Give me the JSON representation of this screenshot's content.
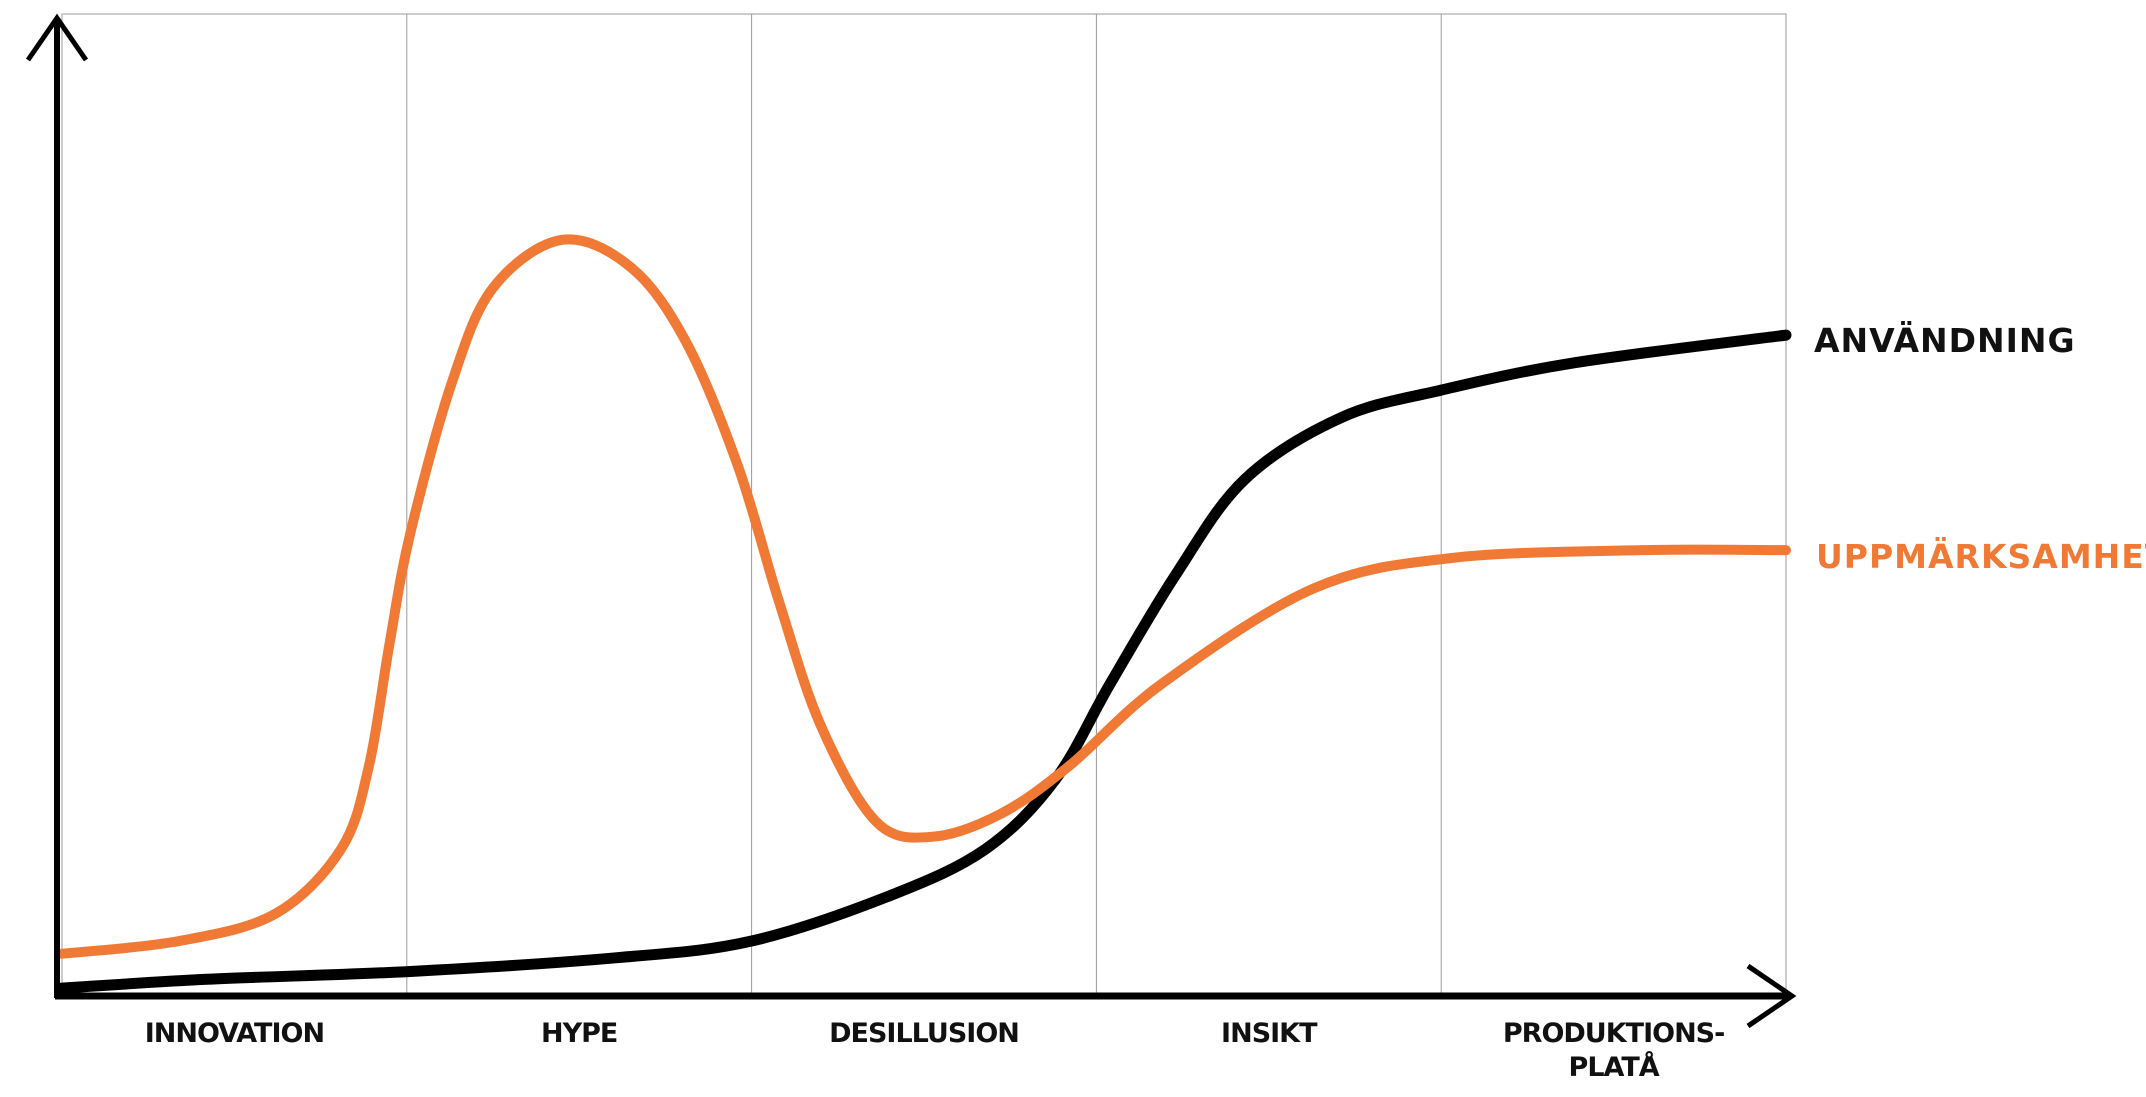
{
  "chart_data": {
    "type": "line",
    "title": "",
    "xlabel": "",
    "ylabel": "",
    "categories": [
      "INNOVATION",
      "HYPE",
      "DESILLUSION",
      "INSIKT",
      [
        "PRODUKTIONS-",
        "PLATÅ"
      ]
    ],
    "xlim": [
      0,
      5
    ],
    "ylim": [
      0,
      1
    ],
    "grid": "vertical lines between phases",
    "legend": "labels at right end of lines",
    "series": [
      {
        "name": "ANVÄNDNING",
        "color": "#000000",
        "x": [
          0,
          0.42,
          1.01,
          1.61,
          2.0,
          2.4,
          2.68,
          2.88,
          3.04,
          3.23,
          3.43,
          3.71,
          4.0,
          4.39,
          5
        ],
        "y": [
          0.008,
          0.017,
          0.025,
          0.039,
          0.056,
          0.102,
          0.15,
          0.22,
          0.318,
          0.429,
          0.526,
          0.589,
          0.617,
          0.645,
          0.673
        ]
      },
      {
        "name": "UPPMÄRKSAMHET",
        "color": "#f07a35",
        "x": [
          0,
          0.34,
          0.62,
          0.81,
          0.89,
          0.95,
          1.01,
          1.13,
          1.25,
          1.45,
          1.65,
          1.81,
          1.96,
          2.08,
          2.2,
          2.36,
          2.52,
          2.72,
          2.92,
          3.19,
          3.63,
          4.03,
          4.58,
          5
        ],
        "y": [
          0.043,
          0.056,
          0.084,
          0.15,
          0.234,
          0.359,
          0.471,
          0.624,
          0.721,
          0.77,
          0.742,
          0.666,
          0.54,
          0.401,
          0.276,
          0.178,
          0.162,
          0.185,
          0.234,
          0.318,
          0.415,
          0.446,
          0.454,
          0.454
        ]
      }
    ]
  }
}
